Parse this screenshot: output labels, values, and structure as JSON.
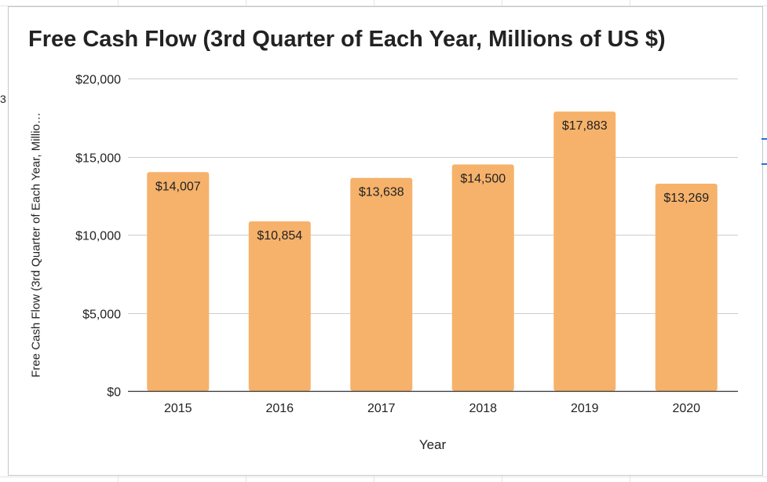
{
  "edge_glyph": "3",
  "chart_data": {
    "type": "bar",
    "title": "Free Cash Flow (3rd Quarter of Each Year, Millions of US $)",
    "xlabel": "Year",
    "ylabel": "Free Cash Flow (3rd Quarter of Each Year, Millio…",
    "categories": [
      "2015",
      "2016",
      "2017",
      "2018",
      "2019",
      "2020"
    ],
    "values": [
      14007,
      10854,
      13638,
      14500,
      17883,
      13269
    ],
    "data_labels": [
      "$14,007",
      "$10,854",
      "$13,638",
      "$14,500",
      "$17,883",
      "$13,269"
    ],
    "yticks": [
      0,
      5000,
      10000,
      15000,
      20000
    ],
    "ytick_labels": [
      "$0",
      "$5,000",
      "$10,000",
      "$15,000",
      "$20,000"
    ],
    "ylim": [
      0,
      20000
    ],
    "grid": true,
    "legend": "none",
    "bar_color": "#f6b26b"
  }
}
